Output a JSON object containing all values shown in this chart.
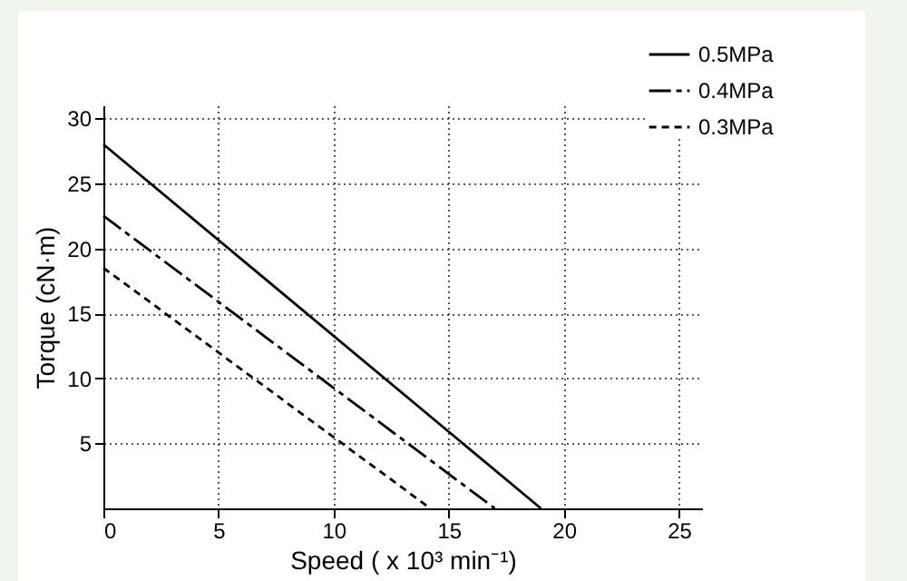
{
  "chart_data": {
    "type": "line",
    "xlabel": "Speed ( x 10³ min⁻¹)",
    "ylabel": "Torque (cN·m)",
    "xlim": [
      0,
      26
    ],
    "ylim": [
      0,
      31
    ],
    "xticks": [
      0,
      5,
      10,
      15,
      20,
      25
    ],
    "yticks": [
      5,
      10,
      15,
      20,
      25,
      30
    ],
    "grid": true,
    "legend": "top right",
    "series": [
      {
        "name": "0.5MPa",
        "color": "#000000",
        "line_style": "solid",
        "x": [
          0,
          19
        ],
        "values": [
          28,
          0
        ]
      },
      {
        "name": "0.4MPa",
        "color": "#000000",
        "line_style": "dashed",
        "x": [
          0,
          17
        ],
        "values": [
          22.5,
          0
        ]
      },
      {
        "name": "0.3MPa",
        "color": "#000000",
        "line_style": "dotted",
        "x": [
          0,
          14.2
        ],
        "values": [
          18.5,
          0
        ]
      }
    ]
  }
}
